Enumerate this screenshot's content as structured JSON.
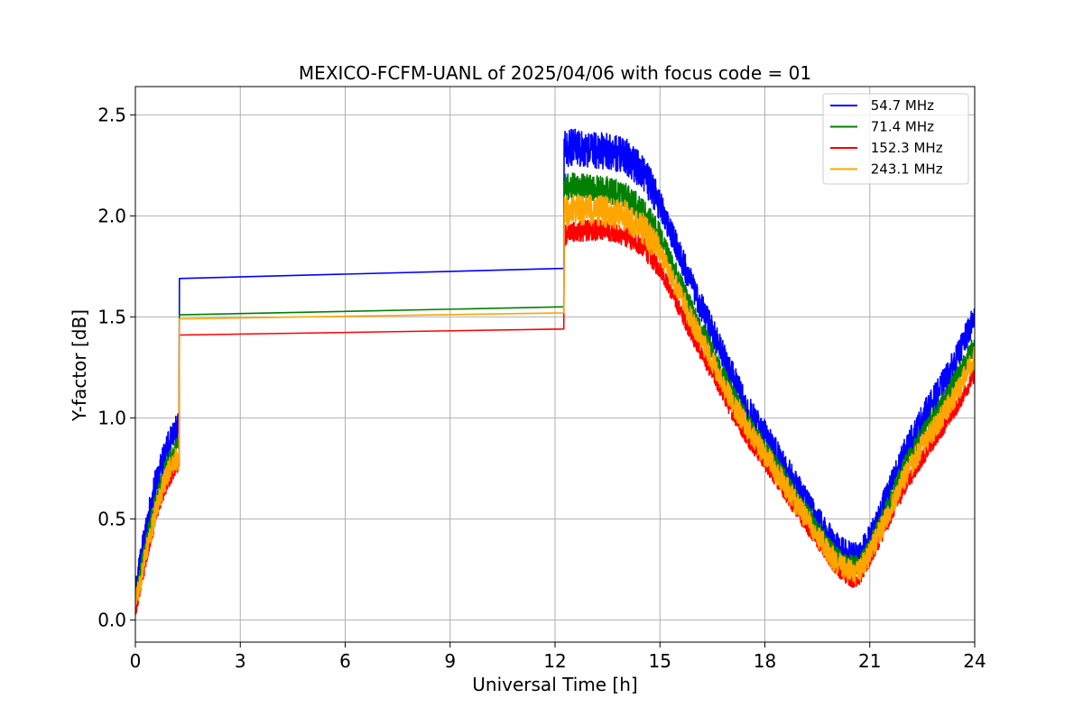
{
  "chart_data": {
    "type": "line",
    "title": "MEXICO-FCFM-UANL of 2025/04/06 with focus code = 01",
    "xlabel": "Universal Time [h]",
    "ylabel": "Y-factor [dB]",
    "xlim": [
      0,
      24
    ],
    "ylim": [
      -0.11,
      2.64
    ],
    "xticks": [
      0,
      3,
      6,
      9,
      12,
      15,
      18,
      21,
      24
    ],
    "xtick_labels": [
      "0",
      "3",
      "6",
      "9",
      "12",
      "15",
      "18",
      "21",
      "24"
    ],
    "yticks": [
      0.0,
      0.5,
      1.0,
      1.5,
      2.0,
      2.5
    ],
    "ytick_labels": [
      "0.0",
      "0.5",
      "1.0",
      "1.5",
      "2.0",
      "2.5"
    ],
    "grid": true,
    "legend_position": "top-right",
    "series": [
      {
        "name": " 54.7 MHz",
        "color": "#0000ff",
        "x": [
          0.0,
          0.3,
          0.6,
          0.9,
          1.18,
          1.25,
          1.26,
          12.25,
          12.26,
          12.5,
          13.0,
          13.5,
          14.0,
          14.5,
          15.0,
          15.5,
          16.0,
          16.5,
          17.0,
          17.5,
          18.0,
          18.5,
          19.0,
          19.5,
          20.0,
          20.3,
          20.5,
          20.7,
          21.0,
          21.5,
          22.0,
          22.5,
          23.0,
          23.5,
          24.0
        ],
        "y": [
          0.15,
          0.45,
          0.7,
          0.85,
          0.95,
          0.95,
          1.69,
          1.74,
          2.33,
          2.34,
          2.33,
          2.32,
          2.3,
          2.22,
          2.06,
          1.84,
          1.62,
          1.43,
          1.24,
          1.05,
          0.92,
          0.78,
          0.64,
          0.5,
          0.37,
          0.33,
          0.32,
          0.32,
          0.4,
          0.62,
          0.83,
          1.0,
          1.14,
          1.3,
          1.5
        ],
        "noise": 0.07
      },
      {
        "name": " 71.4 MHz",
        "color": "#008000",
        "x": [
          0.0,
          0.3,
          0.6,
          0.9,
          1.18,
          1.25,
          1.26,
          12.25,
          12.26,
          12.5,
          13.0,
          13.5,
          14.0,
          14.5,
          15.0,
          15.5,
          16.0,
          16.5,
          17.0,
          17.5,
          18.0,
          18.5,
          19.0,
          19.5,
          20.0,
          20.3,
          20.5,
          20.7,
          21.0,
          21.5,
          22.0,
          22.5,
          23.0,
          23.5,
          24.0
        ],
        "y": [
          0.1,
          0.38,
          0.6,
          0.76,
          0.85,
          0.85,
          1.51,
          1.55,
          2.14,
          2.15,
          2.14,
          2.13,
          2.1,
          2.03,
          1.9,
          1.7,
          1.5,
          1.33,
          1.14,
          0.98,
          0.85,
          0.72,
          0.58,
          0.45,
          0.32,
          0.28,
          0.27,
          0.27,
          0.36,
          0.56,
          0.76,
          0.92,
          1.05,
          1.2,
          1.37
        ],
        "noise": 0.05
      },
      {
        "name": " 152.3 MHz",
        "color": "#ff0000",
        "x": [
          0.0,
          0.3,
          0.6,
          0.9,
          1.18,
          1.25,
          1.26,
          12.25,
          12.26,
          12.5,
          13.0,
          13.5,
          14.0,
          14.5,
          15.0,
          15.5,
          16.0,
          16.5,
          17.0,
          17.5,
          18.0,
          18.5,
          19.0,
          19.5,
          20.0,
          20.3,
          20.5,
          20.7,
          21.0,
          21.5,
          22.0,
          22.5,
          23.0,
          23.5,
          24.0
        ],
        "y": [
          0.05,
          0.3,
          0.52,
          0.68,
          0.76,
          0.76,
          1.41,
          1.44,
          1.9,
          1.92,
          1.93,
          1.93,
          1.9,
          1.85,
          1.74,
          1.56,
          1.38,
          1.22,
          1.05,
          0.9,
          0.78,
          0.65,
          0.52,
          0.39,
          0.27,
          0.22,
          0.2,
          0.21,
          0.3,
          0.48,
          0.66,
          0.8,
          0.93,
          1.06,
          1.22
        ],
        "noise": 0.04
      },
      {
        "name": " 243.1 MHz",
        "color": "#ffa500",
        "x": [
          0.0,
          0.3,
          0.6,
          0.9,
          1.18,
          1.25,
          1.26,
          12.25,
          12.26,
          12.5,
          13.0,
          13.5,
          14.0,
          14.5,
          15.0,
          15.5,
          16.0,
          16.5,
          17.0,
          17.5,
          18.0,
          18.5,
          19.0,
          19.5,
          20.0,
          20.3,
          20.5,
          20.7,
          21.0,
          21.5,
          22.0,
          22.5,
          23.0,
          23.5,
          24.0
        ],
        "y": [
          0.08,
          0.33,
          0.55,
          0.72,
          0.8,
          0.8,
          1.49,
          1.52,
          2.02,
          2.03,
          2.03,
          2.02,
          2.0,
          1.94,
          1.82,
          1.64,
          1.45,
          1.28,
          1.1,
          0.95,
          0.82,
          0.69,
          0.55,
          0.42,
          0.29,
          0.25,
          0.24,
          0.24,
          0.33,
          0.52,
          0.71,
          0.86,
          0.99,
          1.13,
          1.3
        ],
        "noise": 0.06
      }
    ]
  }
}
